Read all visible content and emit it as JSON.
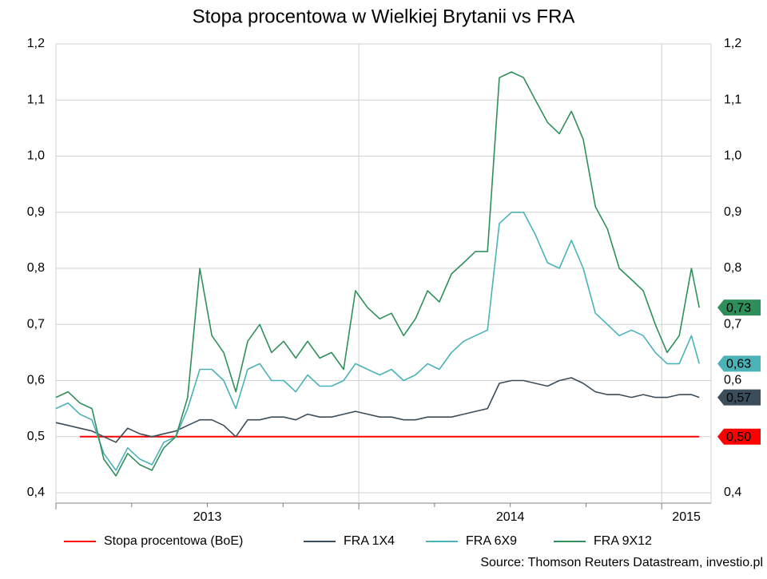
{
  "chart_data": {
    "type": "line",
    "title": "Stopa procentowa w Wielkiej Brytanii vs FRA",
    "source": "Source: Thomson Reuters Datastream, investio.pl",
    "x": [
      2013,
      2013.04,
      2013.079,
      2013.119,
      2013.158,
      2013.198,
      2013.237,
      2013.277,
      2013.317,
      2013.356,
      2013.396,
      2013.435,
      2013.475,
      2013.515,
      2013.554,
      2013.594,
      2013.633,
      2013.673,
      2013.712,
      2013.752,
      2013.792,
      2013.831,
      2013.871,
      2013.91,
      2013.95,
      2013.989,
      2014.029,
      2014.069,
      2014.108,
      2014.148,
      2014.187,
      2014.227,
      2014.266,
      2014.306,
      2014.346,
      2014.385,
      2014.425,
      2014.464,
      2014.504,
      2014.544,
      2014.583,
      2014.623,
      2014.662,
      2014.702,
      2014.741,
      2014.781,
      2014.821,
      2014.86,
      2014.9,
      2014.939,
      2014.979,
      2015.018,
      2015.058,
      2015.098,
      2015.124
    ],
    "xlim": [
      2013,
      2015.163
    ],
    "xticks": [
      {
        "value": 2013,
        "label": "2013"
      },
      {
        "value": 2014,
        "label": "2014"
      },
      {
        "value": 2015,
        "label": "2015"
      }
    ],
    "xminor": [
      2013.25,
      2013.5,
      2013.75,
      2014.25,
      2014.5,
      2014.75
    ],
    "ylim": [
      0.4,
      1.2
    ],
    "yticks": [
      {
        "value": 0.4,
        "label": "0,4"
      },
      {
        "value": 0.5,
        "label": "0,5"
      },
      {
        "value": 0.6,
        "label": "0,6"
      },
      {
        "value": 0.7,
        "label": "0,7"
      },
      {
        "value": 0.8,
        "label": "0,8"
      },
      {
        "value": 0.9,
        "label": "0,9"
      },
      {
        "value": 1.0,
        "label": "1,0"
      },
      {
        "value": 1.1,
        "label": "1,1"
      },
      {
        "value": 1.2,
        "label": "1,2"
      }
    ],
    "y2lim": [
      0.4,
      1.2
    ],
    "y2ticks": [
      {
        "value": 0.4,
        "label": "0,4"
      },
      {
        "value": 0.5,
        "label": "0,5"
      },
      {
        "value": 0.6,
        "label": "0,6"
      },
      {
        "value": 0.7,
        "label": "0,7"
      },
      {
        "value": 0.8,
        "label": "0,8"
      },
      {
        "value": 0.9,
        "label": "0,9"
      },
      {
        "value": 1.0,
        "label": "1,0"
      },
      {
        "value": 1.1,
        "label": "1,1"
      },
      {
        "value": 1.2,
        "label": "1,2"
      }
    ],
    "grid": true,
    "legend": "bottom",
    "series": [
      {
        "name": "Stopa procentowa (BoE)",
        "color": "#ff0000",
        "last_label": "0,50",
        "label_text_color": "#000000",
        "values": [
          null,
          null,
          0.5,
          0.5,
          0.5,
          0.5,
          0.5,
          0.5,
          0.5,
          0.5,
          0.5,
          0.5,
          0.5,
          0.5,
          0.5,
          0.5,
          0.5,
          0.5,
          0.5,
          0.5,
          0.5,
          0.5,
          0.5,
          0.5,
          0.5,
          0.5,
          0.5,
          0.5,
          0.5,
          0.5,
          0.5,
          0.5,
          0.5,
          0.5,
          0.5,
          0.5,
          0.5,
          0.5,
          0.5,
          0.5,
          0.5,
          0.5,
          0.5,
          0.5,
          0.5,
          0.5,
          0.5,
          0.5,
          0.5,
          0.5,
          0.5,
          0.5,
          0.5,
          0.5,
          0.5
        ]
      },
      {
        "name": "FRA 1X4",
        "color": "#3b4d5a",
        "last_label": "0,57",
        "label_text_color": "#ffffff",
        "values": [
          0.525,
          0.52,
          0.515,
          0.51,
          0.5,
          0.49,
          0.515,
          0.505,
          0.5,
          0.505,
          0.51,
          0.52,
          0.53,
          0.53,
          0.52,
          0.5,
          0.53,
          0.53,
          0.535,
          0.535,
          0.53,
          0.54,
          0.535,
          0.535,
          0.54,
          0.545,
          0.54,
          0.535,
          0.535,
          0.53,
          0.53,
          0.535,
          0.535,
          0.535,
          0.54,
          0.545,
          0.55,
          0.595,
          0.6,
          0.6,
          0.595,
          0.59,
          0.6,
          0.605,
          0.595,
          0.58,
          0.575,
          0.575,
          0.57,
          0.575,
          0.57,
          0.57,
          0.575,
          0.575,
          0.57
        ]
      },
      {
        "name": "FRA 6X9",
        "color": "#4bb2b8",
        "last_label": "0,63",
        "label_text_color": "#000000",
        "values": [
          0.55,
          0.56,
          0.54,
          0.53,
          0.47,
          0.44,
          0.48,
          0.46,
          0.45,
          0.49,
          0.5,
          0.55,
          0.62,
          0.62,
          0.6,
          0.55,
          0.62,
          0.63,
          0.6,
          0.6,
          0.58,
          0.61,
          0.59,
          0.59,
          0.6,
          0.63,
          0.62,
          0.61,
          0.62,
          0.6,
          0.61,
          0.63,
          0.62,
          0.65,
          0.67,
          0.68,
          0.69,
          0.88,
          0.9,
          0.9,
          0.86,
          0.81,
          0.8,
          0.85,
          0.8,
          0.72,
          0.7,
          0.68,
          0.69,
          0.68,
          0.65,
          0.63,
          0.63,
          0.68,
          0.63
        ]
      },
      {
        "name": "FRA 9X12",
        "color": "#2f8f5b",
        "last_label": "0,73",
        "label_text_color": "#000000",
        "values": [
          0.57,
          0.58,
          0.56,
          0.55,
          0.46,
          0.43,
          0.47,
          0.45,
          0.44,
          0.48,
          0.5,
          0.57,
          0.8,
          0.68,
          0.65,
          0.58,
          0.67,
          0.7,
          0.65,
          0.67,
          0.64,
          0.67,
          0.64,
          0.65,
          0.62,
          0.76,
          0.73,
          0.71,
          0.72,
          0.68,
          0.71,
          0.76,
          0.74,
          0.79,
          0.81,
          0.83,
          0.83,
          1.14,
          1.15,
          1.14,
          1.1,
          1.06,
          1.04,
          1.08,
          1.03,
          0.91,
          0.87,
          0.8,
          0.78,
          0.76,
          0.7,
          0.65,
          0.68,
          0.8,
          0.73
        ]
      }
    ]
  }
}
